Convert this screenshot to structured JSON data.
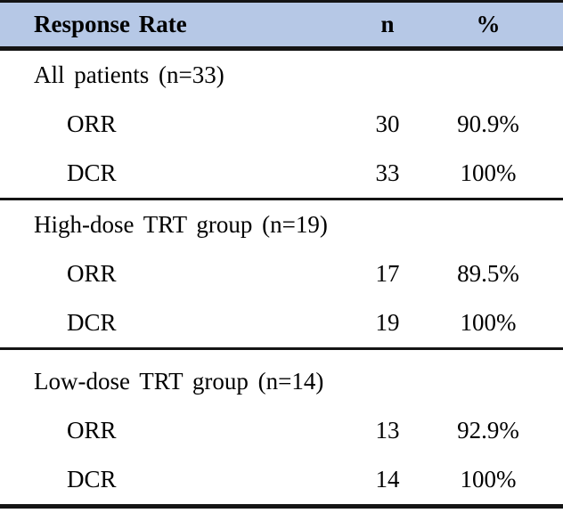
{
  "colors": {
    "header_bg": "#b6c8e6",
    "rule": "#141414",
    "text": "#000000",
    "page_bg": "#ffffff"
  },
  "table": {
    "header": {
      "label": "Response Rate",
      "n": "n",
      "pct": "%"
    },
    "sections": [
      {
        "title": "All patients (n=33)",
        "rows": [
          {
            "label": "ORR",
            "n": "30",
            "pct": "90.9%"
          },
          {
            "label": "DCR",
            "n": "33",
            "pct": "100%"
          }
        ]
      },
      {
        "title": "High-dose TRT group (n=19)",
        "rows": [
          {
            "label": "ORR",
            "n": "17",
            "pct": "89.5%"
          },
          {
            "label": "DCR",
            "n": "19",
            "pct": "100%"
          }
        ]
      },
      {
        "title": "Low-dose TRT group (n=14)",
        "rows": [
          {
            "label": "ORR",
            "n": "13",
            "pct": "92.9%"
          },
          {
            "label": "DCR",
            "n": "14",
            "pct": "100%"
          }
        ]
      }
    ]
  },
  "chart_data": {
    "type": "table",
    "title": "Response Rate",
    "columns": [
      "Response Rate",
      "n",
      "%"
    ],
    "groups": [
      {
        "group": "All patients",
        "group_n": 33,
        "rows": [
          {
            "measure": "ORR",
            "n": 30,
            "percent": 90.9
          },
          {
            "measure": "DCR",
            "n": 33,
            "percent": 100
          }
        ]
      },
      {
        "group": "High-dose TRT group",
        "group_n": 19,
        "rows": [
          {
            "measure": "ORR",
            "n": 17,
            "percent": 89.5
          },
          {
            "measure": "DCR",
            "n": 19,
            "percent": 100
          }
        ]
      },
      {
        "group": "Low-dose TRT group",
        "group_n": 14,
        "rows": [
          {
            "measure": "ORR",
            "n": 13,
            "percent": 92.9
          },
          {
            "measure": "DCR",
            "n": 14,
            "percent": 100
          }
        ]
      }
    ]
  }
}
